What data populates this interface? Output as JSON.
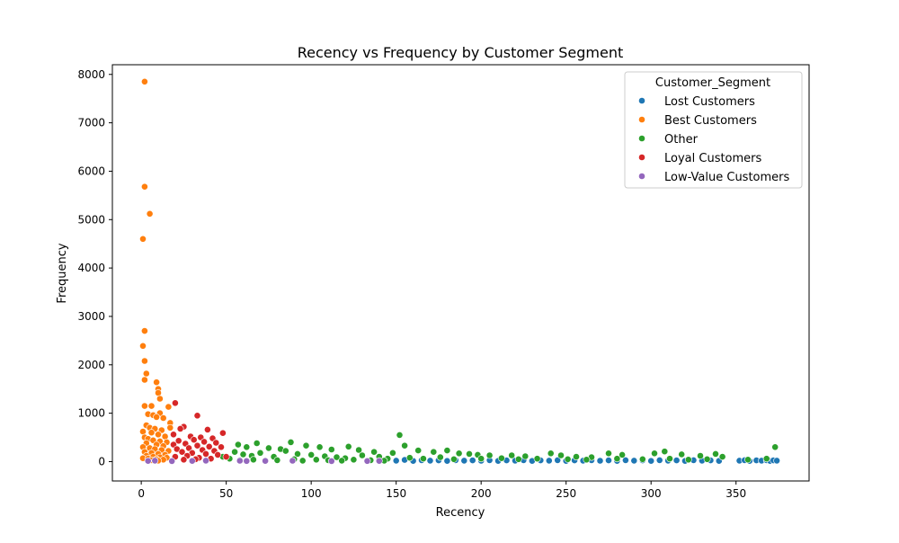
{
  "chart_data": {
    "type": "scatter",
    "title": "Recency vs Frequency by Customer Segment",
    "xlabel": "Recency",
    "ylabel": "Frequency",
    "xlim": [
      -17,
      393
    ],
    "ylim": [
      -400,
      8200
    ],
    "xticks": [
      0,
      50,
      100,
      150,
      200,
      250,
      300,
      350
    ],
    "yticks": [
      0,
      1000,
      2000,
      3000,
      4000,
      5000,
      6000,
      7000,
      8000
    ],
    "grid": false,
    "legend": {
      "title": "Customer_Segment",
      "placement": "top-right"
    },
    "series": [
      {
        "name": "Lost Customers",
        "color": "#1f77b4",
        "points": [
          [
            150,
            20
          ],
          [
            155,
            35
          ],
          [
            160,
            15
          ],
          [
            165,
            30
          ],
          [
            170,
            20
          ],
          [
            175,
            25
          ],
          [
            180,
            15
          ],
          [
            185,
            30
          ],
          [
            190,
            20
          ],
          [
            195,
            25
          ],
          [
            200,
            18
          ],
          [
            205,
            30
          ],
          [
            210,
            15
          ],
          [
            215,
            25
          ],
          [
            220,
            20
          ],
          [
            225,
            30
          ],
          [
            230,
            15
          ],
          [
            235,
            25
          ],
          [
            240,
            20
          ],
          [
            245,
            30
          ],
          [
            250,
            15
          ],
          [
            255,
            25
          ],
          [
            260,
            20
          ],
          [
            265,
            30
          ],
          [
            270,
            18
          ],
          [
            275,
            25
          ],
          [
            280,
            15
          ],
          [
            285,
            30
          ],
          [
            290,
            20
          ],
          [
            295,
            25
          ],
          [
            300,
            15
          ],
          [
            305,
            30
          ],
          [
            310,
            20
          ],
          [
            315,
            25
          ],
          [
            320,
            15
          ],
          [
            325,
            30
          ],
          [
            330,
            20
          ],
          [
            335,
            25
          ],
          [
            340,
            15
          ],
          [
            352,
            20
          ],
          [
            355,
            30
          ],
          [
            358,
            15
          ],
          [
            362,
            25
          ],
          [
            365,
            20
          ],
          [
            368,
            30
          ],
          [
            370,
            15
          ],
          [
            372,
            25
          ],
          [
            374,
            20
          ]
        ]
      },
      {
        "name": "Best Customers",
        "color": "#ff7f0e",
        "points": [
          [
            2,
            7850
          ],
          [
            2,
            5680
          ],
          [
            5,
            5120
          ],
          [
            1,
            4600
          ],
          [
            2,
            2700
          ],
          [
            1,
            2390
          ],
          [
            2,
            2080
          ],
          [
            3,
            1820
          ],
          [
            2,
            1690
          ],
          [
            9,
            1640
          ],
          [
            10,
            1500
          ],
          [
            10,
            1420
          ],
          [
            11,
            1300
          ],
          [
            2,
            1150
          ],
          [
            6,
            1150
          ],
          [
            16,
            1130
          ],
          [
            11,
            1000
          ],
          [
            4,
            980
          ],
          [
            7,
            960
          ],
          [
            9,
            920
          ],
          [
            13,
            900
          ],
          [
            17,
            800
          ],
          [
            17,
            700
          ],
          [
            3,
            750
          ],
          [
            5,
            700
          ],
          [
            8,
            680
          ],
          [
            12,
            650
          ],
          [
            1,
            620
          ],
          [
            6,
            600
          ],
          [
            10,
            560
          ],
          [
            14,
            520
          ],
          [
            2,
            500
          ],
          [
            4,
            470
          ],
          [
            7,
            440
          ],
          [
            11,
            420
          ],
          [
            15,
            400
          ],
          [
            3,
            380
          ],
          [
            9,
            350
          ],
          [
            13,
            320
          ],
          [
            1,
            300
          ],
          [
            5,
            280
          ],
          [
            8,
            260
          ],
          [
            12,
            240
          ],
          [
            16,
            220
          ],
          [
            2,
            200
          ],
          [
            6,
            180
          ],
          [
            10,
            160
          ],
          [
            14,
            140
          ],
          [
            3,
            120
          ],
          [
            7,
            100
          ],
          [
            11,
            90
          ],
          [
            15,
            80
          ],
          [
            1,
            70
          ],
          [
            4,
            60
          ],
          [
            9,
            50
          ],
          [
            13,
            40
          ],
          [
            6,
            30
          ],
          [
            10,
            20
          ]
        ]
      },
      {
        "name": "Other",
        "color": "#2ca02c",
        "points": [
          [
            152,
            550
          ],
          [
            373,
            300
          ],
          [
            155,
            330
          ],
          [
            88,
            400
          ],
          [
            68,
            380
          ],
          [
            57,
            350
          ],
          [
            97,
            330
          ],
          [
            105,
            300
          ],
          [
            122,
            310
          ],
          [
            62,
            300
          ],
          [
            75,
            280
          ],
          [
            82,
            260
          ],
          [
            112,
            250
          ],
          [
            128,
            240
          ],
          [
            137,
            200
          ],
          [
            148,
            180
          ],
          [
            163,
            230
          ],
          [
            172,
            200
          ],
          [
            180,
            230
          ],
          [
            187,
            170
          ],
          [
            193,
            160
          ],
          [
            198,
            140
          ],
          [
            205,
            130
          ],
          [
            218,
            130
          ],
          [
            226,
            110
          ],
          [
            241,
            170
          ],
          [
            247,
            130
          ],
          [
            256,
            100
          ],
          [
            265,
            90
          ],
          [
            275,
            170
          ],
          [
            283,
            140
          ],
          [
            302,
            170
          ],
          [
            308,
            210
          ],
          [
            318,
            150
          ],
          [
            329,
            120
          ],
          [
            338,
            160
          ],
          [
            342,
            100
          ],
          [
            368,
            60
          ],
          [
            55,
            200
          ],
          [
            60,
            150
          ],
          [
            65,
            120
          ],
          [
            70,
            180
          ],
          [
            78,
            100
          ],
          [
            85,
            220
          ],
          [
            92,
            160
          ],
          [
            100,
            140
          ],
          [
            108,
            110
          ],
          [
            115,
            90
          ],
          [
            120,
            70
          ],
          [
            130,
            130
          ],
          [
            140,
            100
          ],
          [
            145,
            60
          ],
          [
            158,
            80
          ],
          [
            166,
            60
          ],
          [
            176,
            90
          ],
          [
            184,
            50
          ],
          [
            200,
            60
          ],
          [
            212,
            70
          ],
          [
            222,
            50
          ],
          [
            233,
            60
          ],
          [
            251,
            50
          ],
          [
            262,
            40
          ],
          [
            280,
            60
          ],
          [
            295,
            50
          ],
          [
            311,
            60
          ],
          [
            322,
            40
          ],
          [
            333,
            50
          ],
          [
            357,
            40
          ],
          [
            48,
            100
          ],
          [
            52,
            60
          ],
          [
            58,
            30
          ],
          [
            66,
            40
          ],
          [
            73,
            20
          ],
          [
            80,
            30
          ],
          [
            90,
            50
          ],
          [
            95,
            20
          ],
          [
            103,
            40
          ],
          [
            110,
            30
          ],
          [
            118,
            20
          ],
          [
            125,
            40
          ],
          [
            135,
            30
          ],
          [
            143,
            20
          ]
        ]
      },
      {
        "name": "Loyal Customers",
        "color": "#d62728",
        "points": [
          [
            20,
            1210
          ],
          [
            33,
            950
          ],
          [
            25,
            720
          ],
          [
            23,
            680
          ],
          [
            39,
            660
          ],
          [
            48,
            590
          ],
          [
            19,
            560
          ],
          [
            29,
            520
          ],
          [
            35,
            500
          ],
          [
            42,
            480
          ],
          [
            31,
            450
          ],
          [
            22,
            430
          ],
          [
            37,
            410
          ],
          [
            44,
            390
          ],
          [
            26,
            370
          ],
          [
            19,
            350
          ],
          [
            33,
            330
          ],
          [
            40,
            310
          ],
          [
            47,
            300
          ],
          [
            28,
            280
          ],
          [
            21,
            260
          ],
          [
            36,
            240
          ],
          [
            43,
            220
          ],
          [
            24,
            200
          ],
          [
            30,
            180
          ],
          [
            38,
            160
          ],
          [
            45,
            140
          ],
          [
            27,
            120
          ],
          [
            20,
            100
          ],
          [
            34,
            80
          ],
          [
            41,
            60
          ],
          [
            50,
            100
          ],
          [
            32,
            50
          ],
          [
            25,
            40
          ]
        ]
      },
      {
        "name": "Low-Value Customers",
        "color": "#9467bd",
        "points": [
          [
            4,
            15
          ],
          [
            8,
            20
          ],
          [
            18,
            10
          ],
          [
            30,
            15
          ],
          [
            38,
            20
          ],
          [
            58,
            18
          ],
          [
            62,
            12
          ],
          [
            73,
            15
          ],
          [
            89,
            18
          ],
          [
            112,
            10
          ],
          [
            133,
            12
          ],
          [
            140,
            15
          ]
        ]
      }
    ]
  }
}
